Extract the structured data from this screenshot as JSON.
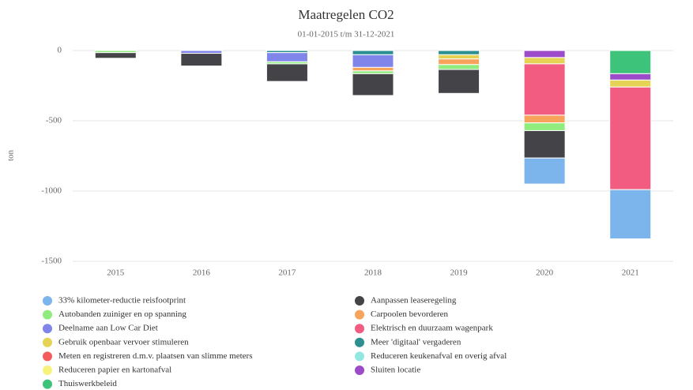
{
  "chart_data": {
    "type": "bar",
    "stacked": true,
    "title": "Maatregelen CO2",
    "subtitle": "01-01-2015 t/m 31-12-2021",
    "y_label": "ton",
    "categories": [
      "2015",
      "2016",
      "2017",
      "2018",
      "2019",
      "2020",
      "2021"
    ],
    "ylim": [
      -1500,
      0
    ],
    "yticks": [
      -1500,
      -1000,
      -500,
      0
    ],
    "grid": true,
    "series": [
      {
        "name": "33% kilometer-reductie reisfootprint",
        "color": "#7cb5ec",
        "values": [
          null,
          null,
          null,
          null,
          null,
          -185,
          -350
        ]
      },
      {
        "name": "Aanpassen leaseregeling",
        "color": "#434348",
        "values": [
          -40,
          -90,
          -125,
          -155,
          -170,
          -195,
          null
        ]
      },
      {
        "name": "Autobanden zuiniger en op spanning",
        "color": "#90ed7d",
        "values": [
          -15,
          null,
          -15,
          -20,
          -35,
          -55,
          null
        ]
      },
      {
        "name": "Carpoolen bevorderen",
        "color": "#f7a35c",
        "values": [
          null,
          null,
          null,
          -25,
          -40,
          -55,
          null
        ]
      },
      {
        "name": "Deelname aan Low Car Diet",
        "color": "#8085e9",
        "values": [
          null,
          -20,
          -65,
          -90,
          null,
          null,
          null
        ]
      },
      {
        "name": "Elektrisch en duurzaam wagenpark",
        "color": "#f15c80",
        "values": [
          null,
          null,
          null,
          null,
          null,
          -365,
          -730
        ]
      },
      {
        "name": "Gebruik openbaar vervoer stimuleren",
        "color": "#e4d354",
        "values": [
          null,
          null,
          null,
          null,
          -30,
          -45,
          -50
        ]
      },
      {
        "name": "Meer 'digitaal' vergaderen",
        "color": "#2b908f",
        "values": [
          null,
          null,
          -15,
          -30,
          -30,
          null,
          null
        ]
      },
      {
        "name": "Meten en registreren d.m.v. plaatsen van slimme meters",
        "color": "#f45b5b",
        "values": [
          null,
          null,
          null,
          null,
          null,
          null,
          null
        ]
      },
      {
        "name": "Reduceren keukenafval en overig afval",
        "color": "#91e8e1",
        "values": [
          null,
          null,
          null,
          null,
          null,
          null,
          null
        ]
      },
      {
        "name": "Reduceren papier en kartonafval",
        "color": "#f7f27b",
        "values": [
          null,
          null,
          null,
          null,
          null,
          null,
          null
        ]
      },
      {
        "name": "Sluiten locatie",
        "color": "#9c4bc9",
        "values": [
          null,
          null,
          null,
          null,
          null,
          -50,
          -45
        ]
      },
      {
        "name": "Thuiswerkbeleid",
        "color": "#3ec47a",
        "values": [
          null,
          null,
          null,
          null,
          null,
          null,
          -165
        ]
      }
    ]
  }
}
